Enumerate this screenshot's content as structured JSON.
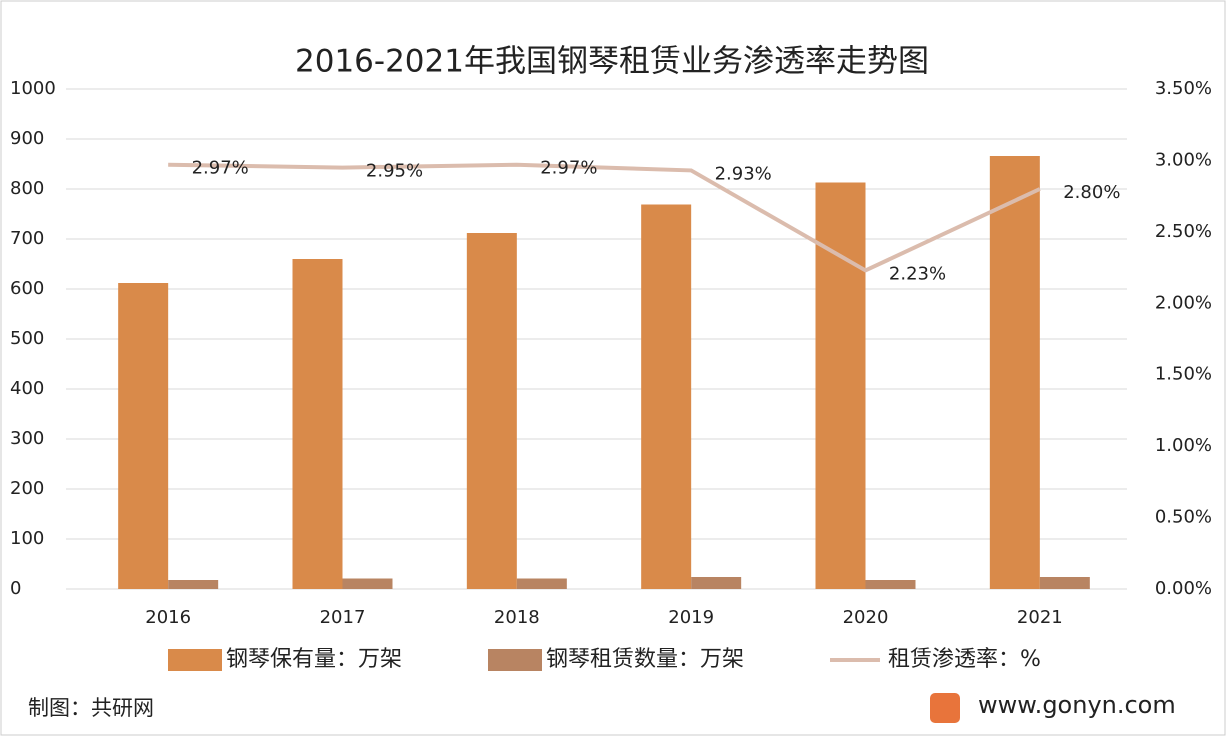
{
  "chart_data": {
    "type": "bar-line",
    "title": "2016-2021年我国钢琴租赁业务渗透率走势图",
    "categories": [
      "2016",
      "2017",
      "2018",
      "2019",
      "2020",
      "2021"
    ],
    "series": [
      {
        "name": "钢琴保有量：万架",
        "type": "bar",
        "color": "#d98a4a",
        "values": [
          612,
          660,
          712,
          769,
          813,
          866
        ]
      },
      {
        "name": "钢琴租赁数量：万架",
        "type": "bar",
        "color": "#b88462",
        "values": [
          18,
          21,
          21,
          24,
          18,
          24
        ]
      },
      {
        "name": "租赁渗透率：%",
        "type": "line",
        "axis": "y2",
        "color": "#dbbcad",
        "values": [
          2.97,
          2.95,
          2.97,
          2.93,
          2.23,
          2.8
        ],
        "value_labels": [
          "2.97%",
          "2.95%",
          "2.97%",
          "2.93%",
          "2.23%",
          "2.80%"
        ]
      }
    ],
    "ylim": [
      0,
      1000
    ],
    "yticks": [
      0,
      100,
      200,
      300,
      400,
      500,
      600,
      700,
      800,
      900,
      1000
    ],
    "y2lim": [
      0,
      3.5
    ],
    "y2ticks": [
      {
        "value": 0,
        "label": "0.00%"
      },
      {
        "value": 0.5,
        "label": "0.50%"
      },
      {
        "value": 1,
        "label": "1.00%"
      },
      {
        "value": 1.5,
        "label": "1.50%"
      },
      {
        "value": 2,
        "label": "2.00%"
      },
      {
        "value": 2.5,
        "label": "2.50%"
      },
      {
        "value": 3,
        "label": "3.00%"
      },
      {
        "value": 3.5,
        "label": "3.50%"
      }
    ],
    "grid": true,
    "legend": "bottom"
  },
  "footer": {
    "credit": "制图：共研网",
    "website": "www.gonyn.com"
  }
}
